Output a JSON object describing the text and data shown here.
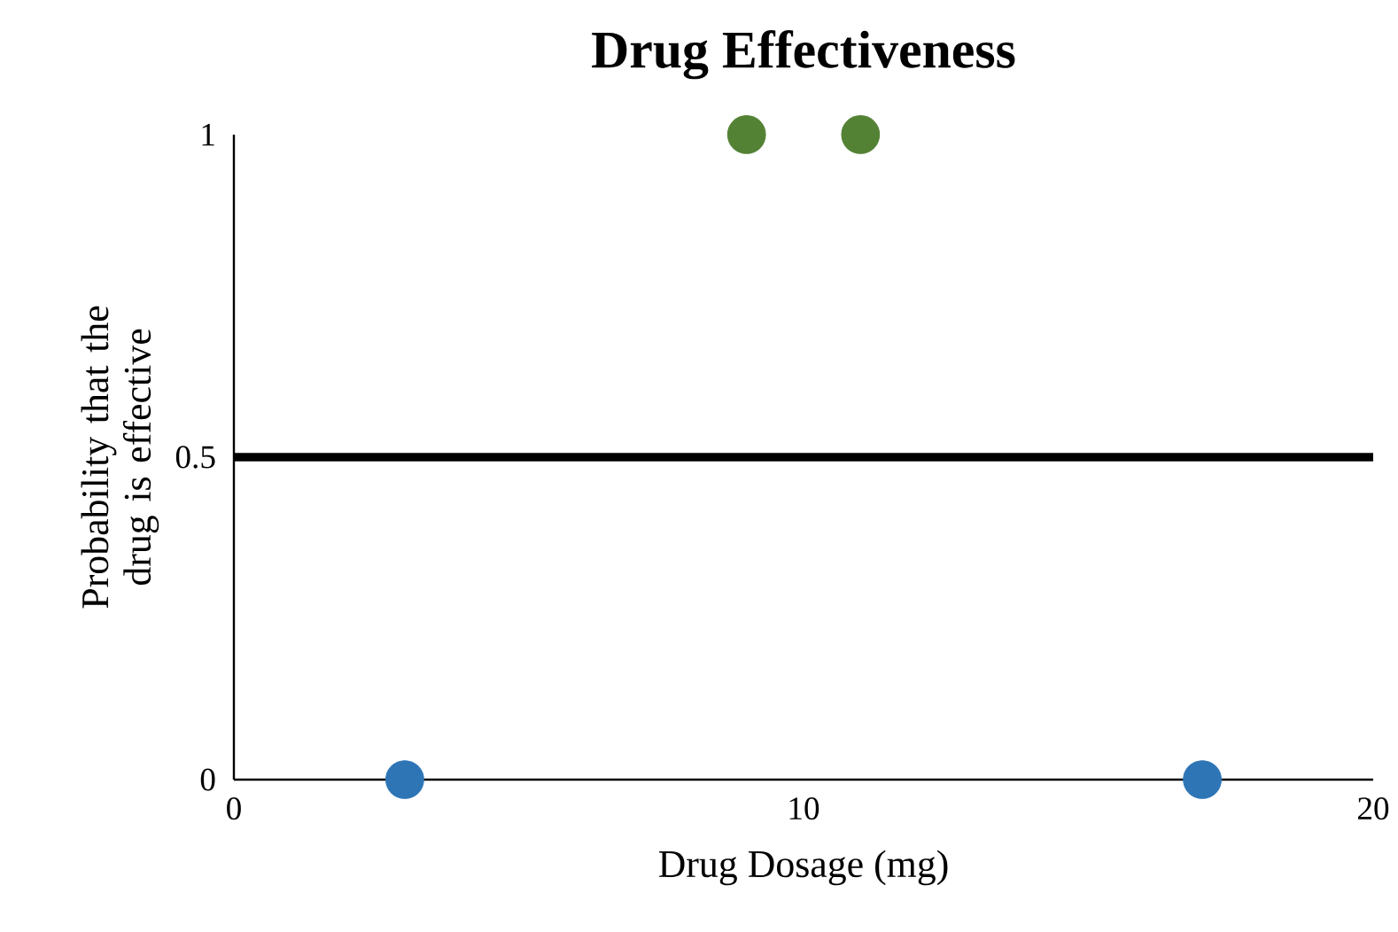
{
  "chart_data": {
    "type": "scatter",
    "title": "Drug Effectiveness",
    "xlabel": "Drug Dosage (mg)",
    "ylabel": "Probability that the drug is effective",
    "series": [
      {
        "color": "#548235",
        "x": [
          9,
          11
        ],
        "values": [
          1,
          1
        ]
      },
      {
        "color": "#2e75b6",
        "x": [
          3,
          17
        ],
        "values": [
          0,
          0
        ]
      }
    ],
    "xlim": [
      0,
      20
    ],
    "ylim": [
      0,
      1
    ],
    "xticks": [
      0,
      10,
      20
    ],
    "yticks": [
      0,
      0.5,
      1
    ],
    "ref_lines": [
      {
        "axis": "y",
        "value": 0.5,
        "color": "#000000"
      }
    ],
    "marker": "circle",
    "grid": false
  }
}
